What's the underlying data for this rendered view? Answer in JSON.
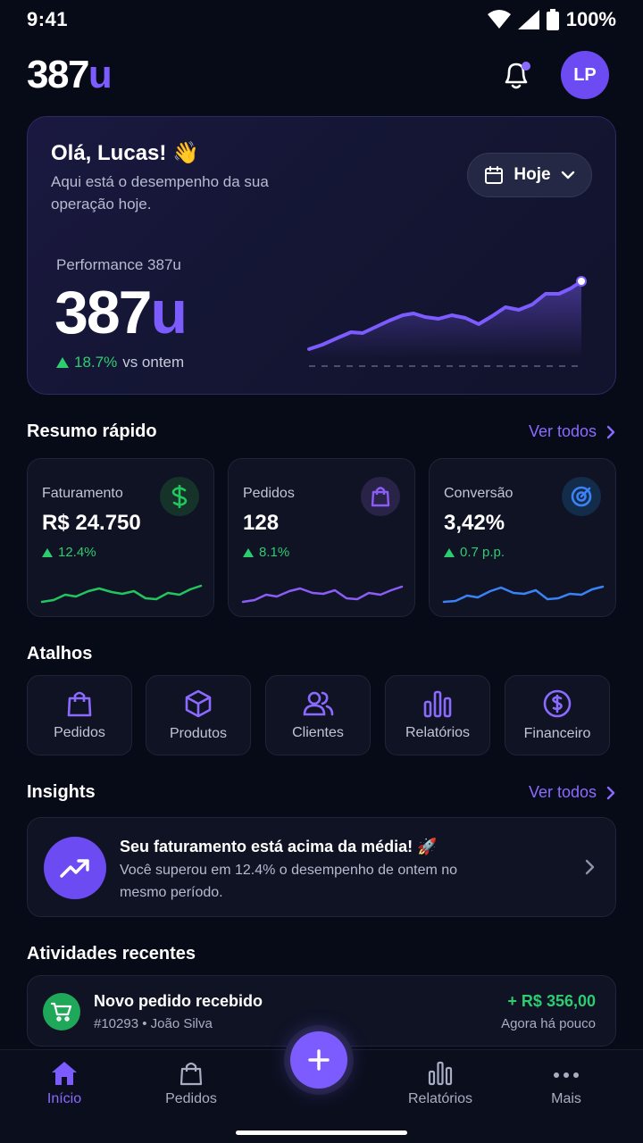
{
  "status_bar": {
    "time": "9:41",
    "battery": "100%"
  },
  "header": {
    "logo_main": "387",
    "logo_accent": "u",
    "avatar_initials": "LP",
    "notification_dot": true
  },
  "hero": {
    "greeting": "Olá, Lucas! 👋",
    "subtitle": "Aqui está o desempenho da sua operação hoje.",
    "date_filter": "Hoje",
    "performance_label": "Performance 387u",
    "value_main": "387",
    "value_accent": "u",
    "change_pct": "18.7%",
    "change_text": "vs ontem"
  },
  "summary": {
    "title": "Resumo rápido",
    "see_all": "Ver todos",
    "cards": [
      {
        "label": "Faturamento",
        "value": "R$ 24.750",
        "change": "12.4%",
        "icon": "dollar-icon",
        "color": "#22c55e"
      },
      {
        "label": "Pedidos",
        "value": "128",
        "change": "8.1%",
        "icon": "bag-icon",
        "color": "#8b5cf6"
      },
      {
        "label": "Conversão",
        "value": "3,42%",
        "change": "0.7 p.p.",
        "icon": "target-icon",
        "color": "#3b82f6"
      }
    ]
  },
  "shortcuts": {
    "title": "Atalhos",
    "items": [
      {
        "label": "Pedidos",
        "icon": "bag-icon"
      },
      {
        "label": "Produtos",
        "icon": "box-icon"
      },
      {
        "label": "Clientes",
        "icon": "users-icon"
      },
      {
        "label": "Relatórios",
        "icon": "bar-chart-icon"
      },
      {
        "label": "Financeiro",
        "icon": "dollar-circle-icon"
      }
    ]
  },
  "insights": {
    "title": "Insights",
    "see_all": "Ver todos",
    "card": {
      "title": "Seu faturamento está acima da média! 🚀",
      "text": "Você superou em 12.4% o desempenho de ontem no mesmo período."
    }
  },
  "activities": {
    "title": "Atividades recentes",
    "items": [
      {
        "title": "Novo pedido recebido",
        "meta": "#10293 • João Silva",
        "amount": "+ R$ 356,00",
        "time": "Agora há pouco"
      }
    ]
  },
  "bottom_nav": {
    "items": [
      {
        "label": "Início",
        "icon": "home-icon",
        "active": true
      },
      {
        "label": "Pedidos",
        "icon": "bag-icon",
        "active": false
      },
      {
        "label": "Relatórios",
        "icon": "bar-chart-icon",
        "active": false
      },
      {
        "label": "Mais",
        "icon": "more-icon",
        "active": false
      }
    ]
  },
  "colors": {
    "accent": "#7c5cff",
    "positive": "#2ecc71",
    "background": "#070b17"
  }
}
